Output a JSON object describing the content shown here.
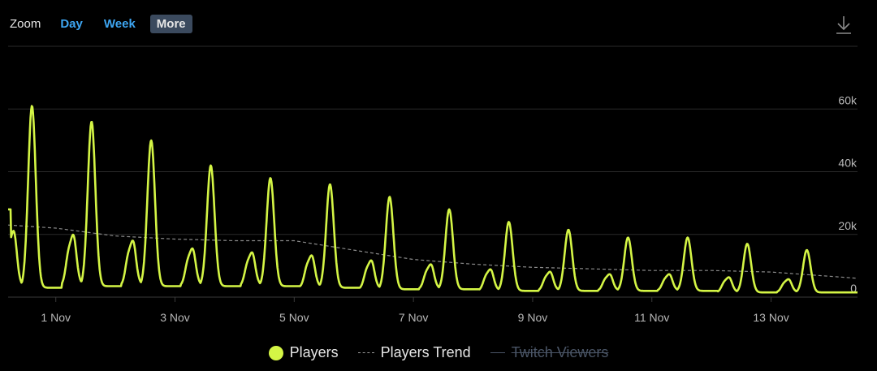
{
  "toolbar": {
    "zoom_label": "Zoom",
    "buttons": [
      "Day",
      "Week",
      "More"
    ],
    "active": "More"
  },
  "colors": {
    "players": "#d4f545",
    "trend": "#8a8a8a",
    "grid": "#2a2a2a",
    "text": "#b8b8b8",
    "twitch": "#4a5566"
  },
  "icons": {
    "download": "download-icon"
  },
  "legend": {
    "players": "Players",
    "trend": "Players Trend",
    "twitch": "Twitch Viewers"
  },
  "chart_data": {
    "type": "line",
    "x_tick_labels": [
      "1 Nov",
      "3 Nov",
      "5 Nov",
      "7 Nov",
      "9 Nov",
      "11 Nov",
      "13 Nov"
    ],
    "x_tick_dates": [
      1,
      3,
      5,
      7,
      9,
      11,
      13
    ],
    "y_tick_labels": [
      "0",
      "20k",
      "40k",
      "60k"
    ],
    "y_tick_values": [
      0,
      20000,
      40000,
      60000
    ],
    "ylim": [
      0,
      80000
    ],
    "xlim": [
      0.2,
      14.45
    ],
    "daily_cycles": [
      {
        "date": 0.6,
        "peak": 61000,
        "low": 3000
      },
      {
        "date": 1.6,
        "peak": 56000,
        "low": 3500
      },
      {
        "date": 2.6,
        "peak": 50000,
        "low": 3500
      },
      {
        "date": 3.6,
        "peak": 42000,
        "low": 3500
      },
      {
        "date": 4.6,
        "peak": 38000,
        "low": 3500
      },
      {
        "date": 5.6,
        "peak": 36000,
        "low": 3000
      },
      {
        "date": 6.6,
        "peak": 32000,
        "low": 2500
      },
      {
        "date": 7.6,
        "peak": 28000,
        "low": 2500
      },
      {
        "date": 8.6,
        "peak": 24000,
        "low": 2000
      },
      {
        "date": 9.6,
        "peak": 21500,
        "low": 2000
      },
      {
        "date": 10.6,
        "peak": 19000,
        "low": 2000
      },
      {
        "date": 11.6,
        "peak": 19000,
        "low": 2000
      },
      {
        "date": 12.6,
        "peak": 17000,
        "low": 1500
      },
      {
        "date": 13.6,
        "peak": 15000,
        "low": 1500
      }
    ],
    "series": [
      {
        "name": "Players Trend",
        "x": [
          0.2,
          1.0,
          2.0,
          3.0,
          4.0,
          5.0,
          6.0,
          7.0,
          8.0,
          9.0,
          10.0,
          11.0,
          12.0,
          13.0,
          14.45
        ],
        "y": [
          23000,
          22000,
          19500,
          18500,
          18000,
          18000,
          15000,
          12000,
          10500,
          9500,
          9000,
          8500,
          8500,
          8000,
          6000
        ]
      }
    ],
    "grid": true,
    "legend_position": "bottom"
  }
}
